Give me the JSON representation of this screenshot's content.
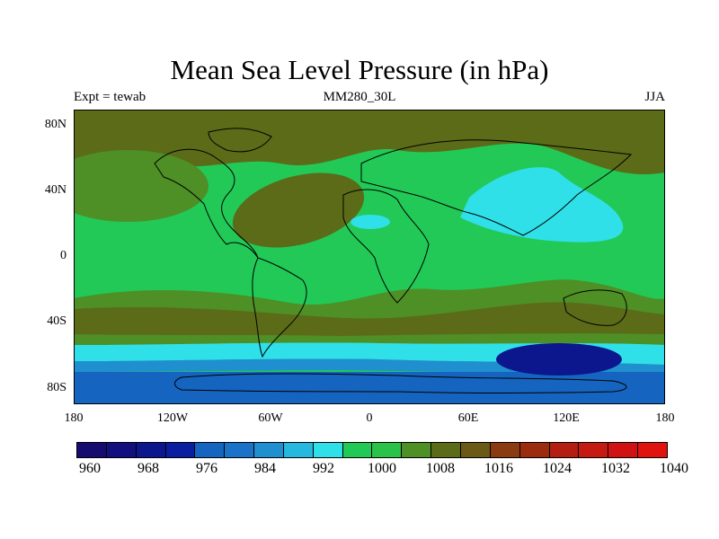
{
  "title": "Mean Sea Level Pressure (in hPa)",
  "left_label": "Expt = tewab",
  "center_label": "MM280_30L",
  "right_label": "JJA",
  "lat_ticks": [
    "80N",
    "40N",
    "0",
    "40S",
    "80S"
  ],
  "lon_ticks": [
    "180",
    "120W",
    "60W",
    "0",
    "60E",
    "120E",
    "180"
  ],
  "colorbar": {
    "labels": [
      "960",
      "968",
      "976",
      "984",
      "992",
      "1000",
      "1008",
      "1016",
      "1024",
      "1032",
      "1040"
    ],
    "colors": [
      "#160b6e",
      "#11107e",
      "#0c168d",
      "#0a1fa0",
      "#1565c0",
      "#1a73c8",
      "#1f8fd0",
      "#26b8df",
      "#2fe0e8",
      "#22c957",
      "#2bc24a",
      "#4e8f26",
      "#5b6b18",
      "#6b5a15",
      "#8a3c10",
      "#9c2c0e",
      "#b31e10",
      "#c41a12",
      "#d01212",
      "#e0140f"
    ]
  },
  "map_colors": {
    "lowest": "#0c168d",
    "low": "#1565c0",
    "low_mid": "#1f8fd0",
    "cyan": "#2fe0e8",
    "green_bright": "#22c957",
    "green": "#2bc24a",
    "green_dark": "#4e8f26",
    "olive": "#5b6b18",
    "coast": "#000000"
  }
}
